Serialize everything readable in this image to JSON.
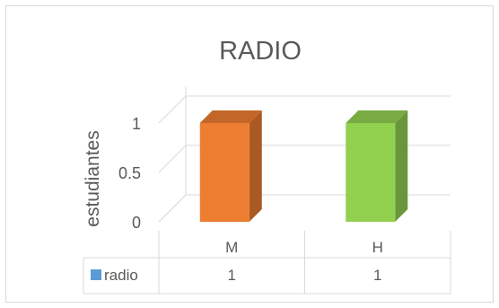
{
  "chart_data": {
    "type": "bar",
    "title": "RADIO",
    "ylabel": "estudiantes",
    "xlabel": "",
    "categories": [
      "M",
      "H"
    ],
    "series": [
      {
        "name": "radio",
        "values": [
          1,
          1
        ],
        "legend_color": "#5b9bd5"
      }
    ],
    "bar_colors": [
      "#ed7d31",
      "#92d050"
    ],
    "ylim": [
      0,
      1
    ],
    "yticks": [
      "0",
      "0.5",
      "1"
    ],
    "grid": true,
    "data_table": true,
    "table_values": [
      "1",
      "1"
    ]
  }
}
